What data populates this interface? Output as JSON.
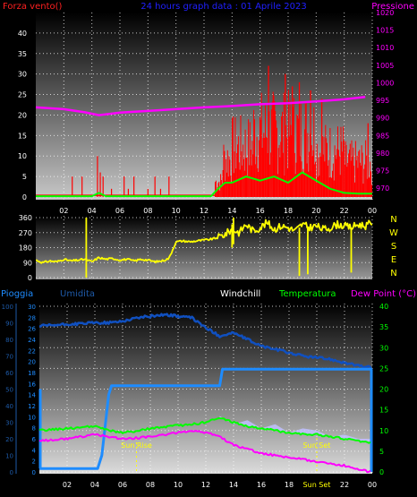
{
  "colors": {
    "wind": "#ff0000",
    "gust": "#00ff00",
    "pressure": "#ff00ff",
    "direction": "#ffff00",
    "humidity": "#1050c0",
    "rain": "#1e8cff",
    "temperature": "#00ff00",
    "dewpoint": "#ff00ff",
    "windchill": "#c0c0ff",
    "title": "#2020ff",
    "axis_left_top": "#ff2020",
    "axis_right_top": "#ff00ff",
    "axis_dir": "#ffff00",
    "axis_rain": "#1e8cff",
    "axis_hum": "#1e5aa8",
    "axis_temp": "#00ff00",
    "sun": "#ffff00",
    "tick": "#ffffff"
  },
  "chart_data": [
    {
      "type": "line",
      "title": "24 hours graph data : 01 Aprile 2023",
      "left_label": "Forza vento()",
      "right_label": "Pressione",
      "x_ticks": [
        "02",
        "04",
        "06",
        "08",
        "10",
        "12",
        "14",
        "16",
        "18",
        "20",
        "22",
        "00"
      ],
      "xlim": [
        0,
        24
      ],
      "y_left_ticks": [
        0,
        5,
        10,
        15,
        20,
        25,
        30,
        35,
        40
      ],
      "y_left_lim": [
        0,
        45
      ],
      "y_right_ticks": [
        970,
        975,
        980,
        985,
        990,
        995,
        1000,
        1005,
        1010,
        1015,
        1020
      ],
      "y_right_lim": [
        967.5,
        1020
      ],
      "pressure": {
        "x": [
          0,
          2,
          3.5,
          4.5,
          6,
          8,
          10,
          12,
          14,
          16,
          18,
          20,
          22,
          23.5
        ],
        "y": [
          993,
          992.5,
          991.6,
          990.8,
          991.5,
          992,
          992.5,
          993,
          993.4,
          993.9,
          994.2,
          994.7,
          995.3,
          996
        ]
      },
      "gust": {
        "x": [
          0,
          4,
          4.5,
          5,
          12.5,
          13,
          13.5,
          14,
          15,
          16,
          17,
          18,
          19,
          20,
          21,
          22,
          23,
          24
        ],
        "y": [
          0.2,
          0.2,
          1,
          0.2,
          0.2,
          2,
          3.5,
          3.5,
          5,
          4,
          5,
          3.5,
          6,
          4,
          2,
          1,
          0.8,
          0.8
        ]
      }
    },
    {
      "type": "line",
      "y_ticks": [
        0,
        90,
        180,
        270,
        360
      ],
      "ylim": [
        0,
        360
      ],
      "right_labels": [
        "N",
        "W",
        "S",
        "E",
        "N"
      ],
      "direction": {
        "x": [
          0,
          0.5,
          1,
          1.5,
          2,
          2.5,
          3,
          3.5,
          4,
          4.5,
          5,
          5.5,
          6,
          6.5,
          7,
          7.5,
          8,
          8.5,
          9,
          9.5,
          10,
          10.5,
          11,
          11.5,
          12,
          12.5,
          13,
          13.5,
          14,
          14.5,
          15,
          15.5,
          16,
          16.5,
          17,
          17.5,
          18,
          18.5,
          19,
          19.5,
          20,
          20.5,
          21,
          21.5,
          22,
          22.5,
          23,
          23.5,
          24
        ],
        "y": [
          105,
          90,
          100,
          95,
          110,
          100,
          105,
          110,
          95,
          120,
          110,
          115,
          105,
          110,
          100,
          110,
          105,
          95,
          100,
          115,
          215,
          220,
          215,
          220,
          225,
          230,
          240,
          260,
          290,
          270,
          320,
          280,
          300,
          330,
          290,
          310,
          300,
          280,
          320,
          300,
          310,
          290,
          300,
          320,
          310,
          300,
          320,
          310,
          330
        ]
      }
    },
    {
      "type": "line",
      "labels": {
        "rain": "Pioggia",
        "humidity": "Umidita",
        "windchill": "Windchill",
        "temperature": "Temperatura",
        "dewpoint": "Dew Point (°C)"
      },
      "x_ticks": [
        "02",
        "04",
        "06",
        "08",
        "10",
        "12",
        "14",
        "16",
        "18",
        "Sun Set",
        "22",
        "00"
      ],
      "sun_rise_label": "Sun Rise",
      "sun_set_label": "Sun Set",
      "sun_rise_hour": 7.0,
      "sun_set_hour": 20.0,
      "y_left_ticks": [
        0,
        10,
        20,
        30,
        40,
        50,
        60,
        70,
        80,
        90,
        100
      ],
      "y_left2_ticks": [
        0,
        2,
        4,
        6,
        8,
        10,
        12,
        14,
        16,
        18,
        20,
        22,
        24,
        26,
        28,
        30
      ],
      "y_right_ticks": [
        0,
        5,
        10,
        15,
        20,
        25,
        30,
        35,
        40
      ],
      "humidity": {
        "x": [
          0,
          2,
          4,
          5,
          6,
          7,
          8,
          9,
          10,
          11,
          12,
          13,
          14,
          15,
          16,
          17,
          18,
          19,
          20,
          21,
          22,
          23,
          24
        ],
        "y": [
          88,
          89,
          90,
          90,
          91,
          93,
          94,
          95,
          94,
          93,
          87,
          82,
          84,
          80,
          76,
          74,
          72,
          70,
          69,
          68,
          66,
          64,
          63
        ]
      },
      "rain": {
        "x": [
          0,
          4.2,
          4.5,
          5,
          5.2,
          13,
          13.2,
          24
        ],
        "y": [
          0.6,
          0.6,
          3,
          14,
          15.6,
          15.6,
          18.6,
          18.6
        ]
      },
      "temperature": {
        "x": [
          0,
          2,
          4,
          5,
          6,
          7,
          8,
          9,
          10,
          11,
          12,
          13,
          14,
          15,
          16,
          17,
          18,
          19,
          20,
          21,
          22,
          23,
          24
        ],
        "y": [
          10,
          10.5,
          11,
          10,
          9.5,
          9.8,
          10.5,
          10.8,
          11.2,
          11.5,
          12,
          13,
          12,
          11,
          10.5,
          10,
          9.5,
          9.2,
          9,
          8.5,
          8,
          7.5,
          7
        ]
      },
      "dewpoint": {
        "x": [
          0,
          2,
          4,
          5,
          6,
          7,
          8,
          9,
          10,
          11,
          12,
          13,
          14,
          15,
          16,
          17,
          18,
          19,
          20,
          21,
          22,
          23,
          24
        ],
        "y": [
          7.5,
          8,
          9,
          8.5,
          8,
          8.2,
          8.5,
          9,
          9.5,
          10,
          9.5,
          8.5,
          6.5,
          5.5,
          4.5,
          4,
          3.5,
          3,
          2.5,
          2,
          1.5,
          0.5,
          0
        ]
      },
      "windchill": {
        "x": [
          13,
          14,
          15,
          16,
          17,
          18,
          19,
          20,
          21,
          22,
          23,
          24
        ],
        "y": [
          12,
          10,
          11,
          9,
          10,
          8,
          9,
          8.5,
          7,
          7.5,
          6.5,
          6.5
        ]
      }
    }
  ]
}
